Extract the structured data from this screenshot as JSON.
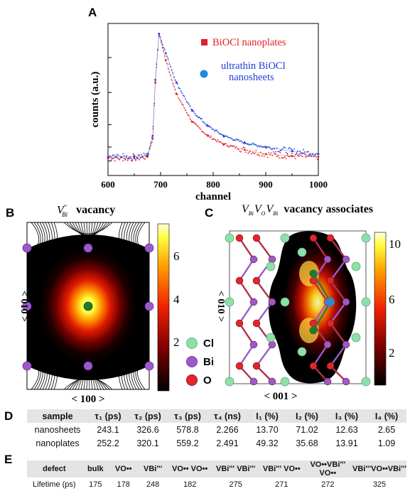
{
  "panelA": {
    "letter": "A",
    "xlabel": "channel",
    "ylabel": "counts (a.u.)",
    "xticks": [
      "600",
      "700",
      "800",
      "900",
      "1000"
    ],
    "legend": [
      {
        "label": "BiOCl nanoplates",
        "color": "#e0202a",
        "marker": "square"
      },
      {
        "label_lines": [
          "ultrathin BiOCl",
          "nanosheets"
        ],
        "color": "#1f3fd8",
        "marker": "circle"
      }
    ]
  },
  "chart_data": [
    {
      "type": "scatter",
      "xlabel": "channel",
      "ylabel": "counts (a.u.)",
      "xlim": [
        600,
        1000
      ],
      "ylim": [
        0,
        1
      ],
      "x_ticks": [
        600,
        700,
        800,
        900,
        1000
      ],
      "y_scale": "log",
      "series": [
        {
          "name": "BiOCl nanoplates",
          "color": "#e0202a",
          "x": [
            600,
            650,
            675,
            685,
            690,
            697,
            710,
            730,
            760,
            790,
            820,
            860,
            900,
            950,
            1000
          ],
          "y": [
            0.08,
            0.08,
            0.09,
            0.22,
            0.62,
            0.97,
            0.78,
            0.54,
            0.34,
            0.24,
            0.18,
            0.14,
            0.11,
            0.095,
            0.09
          ]
        },
        {
          "name": "ultrathin BiOCl nanosheets",
          "color": "#1f3fd8",
          "x": [
            600,
            650,
            675,
            685,
            690,
            697,
            710,
            730,
            760,
            790,
            820,
            860,
            900,
            950,
            1000
          ],
          "y": [
            0.09,
            0.09,
            0.1,
            0.24,
            0.64,
            0.97,
            0.83,
            0.62,
            0.42,
            0.31,
            0.24,
            0.19,
            0.16,
            0.13,
            0.11
          ]
        }
      ]
    }
  ],
  "panelB": {
    "letter": "B",
    "title_sym": "V",
    "title_sub": "Bi",
    "title_sup": "'''",
    "title_word": "vacancy",
    "xlabel": "< 100 >",
    "ylabel": "< 010 >",
    "colorbar_ticks": [
      "6",
      "4",
      "2"
    ]
  },
  "panelC": {
    "letter": "C",
    "title_word": "vacancy associates",
    "xlabel": "< 001 >",
    "ylabel": "< 010 >",
    "colorbar_ticks": [
      "10",
      "6",
      "2"
    ],
    "legend": [
      {
        "label": "Cl",
        "color": "#8fe0a8"
      },
      {
        "label": "Bi",
        "color": "#9b59c9"
      },
      {
        "label": "O",
        "color": "#e0262c"
      }
    ]
  },
  "tableD": {
    "letter": "D",
    "headers": [
      "sample",
      "τ₁ (ps)",
      "τ₂ (ps)",
      "τ₃ (ps)",
      "τ₄ (ns)",
      "I₁ (%)",
      "I₂ (%)",
      "I₃ (%)",
      "I₄ (%)"
    ],
    "rows": [
      [
        "nanosheets",
        "243.1",
        "326.6",
        "578.8",
        "2.266",
        "13.70",
        "71.02",
        "12.63",
        "2.65"
      ],
      [
        "nanoplates",
        "252.2",
        "320.1",
        "559.2",
        "2.491",
        "49.32",
        "35.68",
        "13.91",
        "1.09"
      ]
    ]
  },
  "tableE": {
    "letter": "E",
    "headers": [
      "defect",
      "bulk",
      "VO••",
      "VBi'''",
      "VO•• VO••",
      "VBi''' VBi'''",
      "VBi''' VO••",
      "VO••VBi''' VO••",
      "VBi'''VO••VBi'''"
    ],
    "rows": [
      [
        "Lifetime (ps)",
        "175",
        "178",
        "248",
        "182",
        "275",
        "271",
        "272",
        "325"
      ]
    ]
  }
}
